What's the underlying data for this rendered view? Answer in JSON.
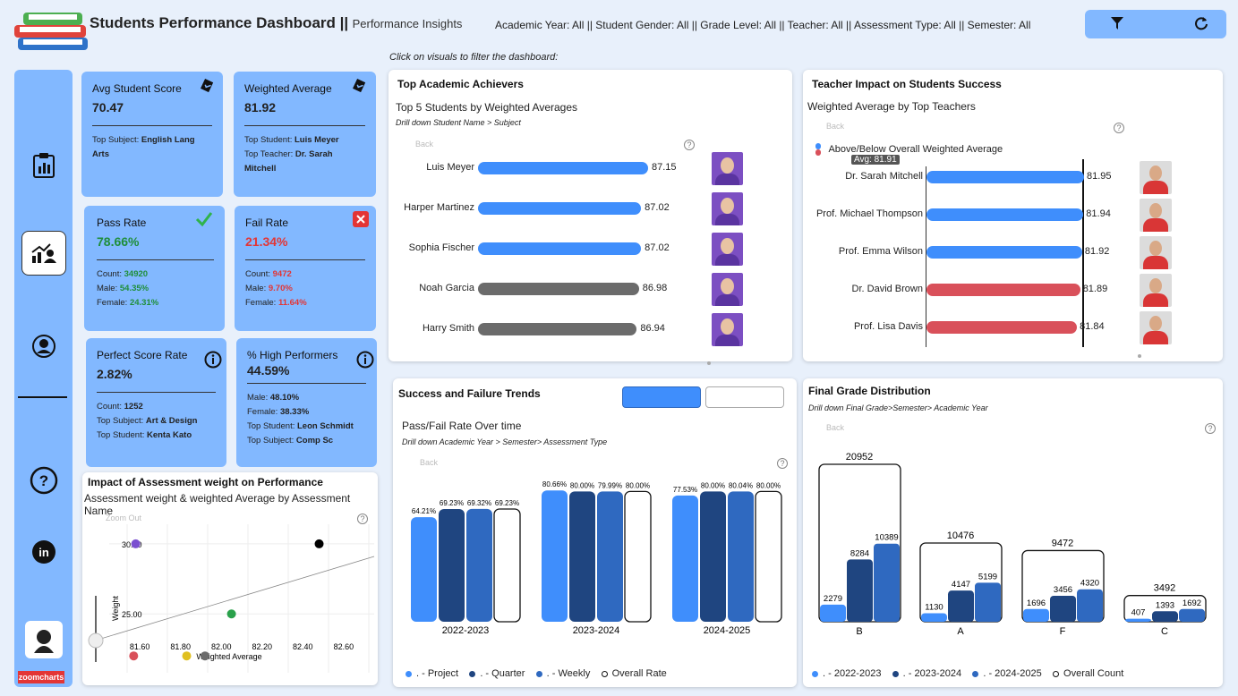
{
  "header": {
    "title": "Students Performance Dashboard ||",
    "subtitle": "Performance Insights",
    "filters": "Academic Year: All || Student Gender: All || Grade Level: All || Teacher: All || Assessment Type: All || Semester: All",
    "hint": "Click on visuals to filter the dashboard:"
  },
  "kpis": {
    "avg_score": {
      "title": "Avg Student Score",
      "value": "70.47",
      "line1_label": "Top Subject: ",
      "line1_value": "English Lang Arts"
    },
    "weighted_avg": {
      "title": "Weighted Average",
      "value": "81.92",
      "line1_label": "Top Student: ",
      "line1_value": "Luis Meyer",
      "line2_label": "Top Teacher: ",
      "line2_value": "Dr. Sarah Mitchell"
    },
    "pass_rate": {
      "title": "Pass Rate",
      "value": "78.66%",
      "count_label": "Count: ",
      "count": "34920",
      "male_label": "Male: ",
      "male": "54.35%",
      "female_label": "Female: ",
      "female": "24.31%"
    },
    "fail_rate": {
      "title": "Fail Rate",
      "value": "21.34%",
      "count_label": "Count: ",
      "count": "9472",
      "male_label": "Male: ",
      "male": "9.70%",
      "female_label": "Female: ",
      "female": "11.64%"
    },
    "perfect": {
      "title": "Perfect Score Rate",
      "value": "2.82%",
      "count_label": "Count: ",
      "count": "1252",
      "subj_label": "Top Subject: ",
      "subj": "Art & Design",
      "stud_label": "Top Student: ",
      "stud": "Kenta Kato"
    },
    "high": {
      "title": "% High Performers",
      "value": "44.59%",
      "male_label": "Male: ",
      "male": "48.10%",
      "female_label": "Female: ",
      "female": "38.33%",
      "stud_label": "Top Student: ",
      "stud": "Leon Schmidt",
      "subj_label": "Top Subject: ",
      "subj": "Comp Sc"
    }
  },
  "top_students": {
    "title": "Top Academic Achievers",
    "subtitle": "Top 5 Students by Weighted Averages",
    "drill": "Drill down Student Name > Subject",
    "back": "Back"
  },
  "teachers": {
    "title": "Teacher Impact on Students Success",
    "subtitle": "Weighted Average by Top Teachers",
    "back": "Back",
    "legend": "Above/Below Overall Weighted Average",
    "avg_label": "Avg: 81.91"
  },
  "trends": {
    "title": "Success and Failure Trends",
    "subtitle": "Pass/Fail Rate Over time",
    "drill": "Drill down Academic Year > Semester> Assessment Type",
    "back": "Back",
    "legend": [
      ". - Project",
      ". - Quarter",
      ". - Weekly",
      "Overall Rate"
    ]
  },
  "grades": {
    "title": "Final Grade Distribution",
    "drill": "Drill down Final Grade>Semester> Academic Year",
    "back": "Back",
    "legend": [
      ". - 2022-2023",
      ". - 2023-2024",
      ". - 2024-2025",
      "Overall Count"
    ]
  },
  "scatter": {
    "title": "Impact of Assessment weight on Performance",
    "subtitle": "Assessment weight & weighted Average by Assessment Name",
    "zoom": "Zoom Out",
    "ylabel": "Weight",
    "xlabel": "Weighted Average"
  },
  "brand": "zoomcharts",
  "colors": {
    "blue": "#3f8efc",
    "dark": "#1f4580",
    "mid": "#2f69c0",
    "gray": "#6b6b6b",
    "red": "#d9505a",
    "kpi": "#82b8ff"
  },
  "chart_data": [
    {
      "type": "bar",
      "orientation": "horizontal",
      "categories": [
        "Luis Meyer",
        "Harper Martinez",
        "Sophia Fischer",
        "Noah Garcia",
        "Harry Smith"
      ],
      "values": [
        87.15,
        87.02,
        87.02,
        86.98,
        86.94
      ],
      "labels": [
        "87.15",
        "87.02",
        "87.02",
        "86.98",
        "86.94"
      ],
      "highlight": [
        true,
        true,
        true,
        false,
        false
      ]
    },
    {
      "type": "bar",
      "orientation": "horizontal",
      "categories": [
        "Dr. Sarah Mitchell",
        "Prof. Michael Thompson",
        "Prof. Emma Wilson",
        "Dr. David Brown",
        "Prof. Lisa Davis"
      ],
      "values": [
        81.95,
        81.94,
        81.92,
        81.89,
        81.84
      ],
      "labels": [
        "81.95",
        "81.94",
        "81.92",
        "81.89",
        "81.84"
      ],
      "above": [
        true,
        true,
        true,
        false,
        false
      ],
      "average": 81.91
    },
    {
      "type": "bar",
      "categories": [
        "2022-2023",
        "2023-2024",
        "2024-2025"
      ],
      "series": [
        {
          "name": ". - Project",
          "values": [
            64.21,
            80.66,
            77.53
          ],
          "labels": [
            "64.21%",
            "80.66%",
            "77.53%"
          ]
        },
        {
          "name": ". - Quarter",
          "values": [
            69.23,
            80.0,
            80.0
          ],
          "labels": [
            "69.23%",
            "80.00%",
            "80.00%"
          ]
        },
        {
          "name": ". - Weekly",
          "values": [
            69.32,
            79.99,
            80.04
          ],
          "labels": [
            "69.32%",
            "79.99%",
            "80.04%"
          ]
        },
        {
          "name": "Overall Rate",
          "values": [
            69.23,
            80.0,
            80.0
          ],
          "labels": [
            "69.23%",
            "80.00%",
            "80.00%"
          ]
        }
      ]
    },
    {
      "type": "bar",
      "categories": [
        "B",
        "A",
        "F",
        "C"
      ],
      "totals": [
        20952,
        10476,
        9472,
        3492
      ],
      "total_labels": [
        "20952",
        "10476",
        "9472",
        "3492"
      ],
      "series": [
        {
          "name": ". - 2022-2023",
          "values": [
            2279,
            1130,
            1696,
            407
          ],
          "labels": [
            "2279",
            "1130",
            "1696",
            "407"
          ]
        },
        {
          "name": ". - 2023-2024",
          "values": [
            8284,
            4147,
            3456,
            1393
          ],
          "labels": [
            "8284",
            "4147",
            "3456",
            "1393"
          ]
        },
        {
          "name": ". - 2024-2025",
          "values": [
            10389,
            5199,
            4320,
            1692
          ],
          "labels": [
            "10389",
            "5199",
            "4320",
            "1692"
          ]
        }
      ]
    },
    {
      "type": "scatter",
      "xticks": [
        "81.60",
        "81.80",
        "82.00",
        "82.20",
        "82.40",
        "82.60"
      ],
      "yticks": [
        "30.00",
        "25.00"
      ],
      "xlim": [
        81.45,
        82.75
      ],
      "ylim": [
        20.8,
        31.4
      ],
      "points": [
        {
          "x": 81.58,
          "y": 30.0,
          "color": "#7a4fd0"
        },
        {
          "x": 82.48,
          "y": 30.0,
          "color": "#000000"
        },
        {
          "x": 82.05,
          "y": 25.0,
          "color": "#2aa14b"
        },
        {
          "x": 81.57,
          "y": 22.0,
          "color": "#d9505a"
        },
        {
          "x": 81.83,
          "y": 22.0,
          "color": "#e0c020"
        },
        {
          "x": 81.92,
          "y": 22.0,
          "color": "#6b6b6b"
        }
      ]
    }
  ]
}
